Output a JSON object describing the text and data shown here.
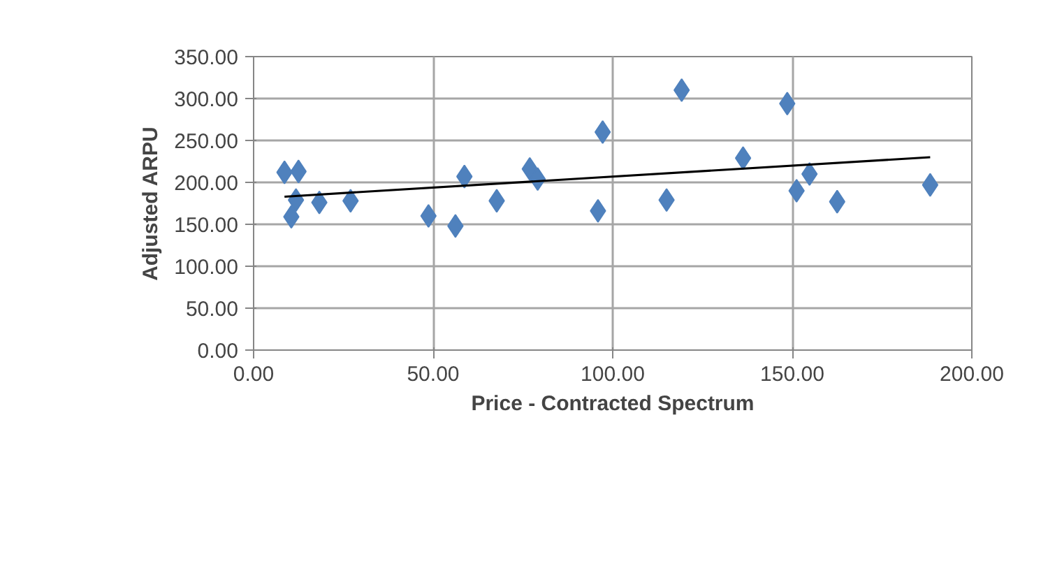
{
  "chart_data": {
    "type": "scatter",
    "xlabel": "Price - Contracted Spectrum",
    "ylabel": "Adjusted ARPU",
    "grid": true,
    "xlim": [
      0,
      200
    ],
    "xticks": [
      {
        "value": 0,
        "label": "0.00"
      },
      {
        "value": 50,
        "label": "50.00"
      },
      {
        "value": 100,
        "label": "100.00"
      },
      {
        "value": 150,
        "label": "150.00"
      },
      {
        "value": 200,
        "label": "200.00"
      }
    ],
    "ylim": [
      0,
      350
    ],
    "yticks": [
      {
        "value": 0,
        "label": "0.00"
      },
      {
        "value": 50,
        "label": "50.00"
      },
      {
        "value": 100,
        "label": "100.00"
      },
      {
        "value": 150,
        "label": "150.00"
      },
      {
        "value": 200,
        "label": "200.00"
      },
      {
        "value": 250,
        "label": "250.00"
      },
      {
        "value": 300,
        "label": "300.00"
      },
      {
        "value": 350,
        "label": "350.00"
      }
    ],
    "series": [
      {
        "marker": "diamond",
        "color": "#4f81bd",
        "x": [
          8.6,
          12.5,
          11.8,
          10.5,
          18.3,
          27,
          48.7,
          56.2,
          58.7,
          67.7,
          76.9,
          79.1,
          97.2,
          95.9,
          119.2,
          115,
          136.3,
          148.6,
          151.2,
          154.8,
          162.5,
          188.4
        ],
        "values": [
          212,
          213,
          179,
          159,
          176,
          178,
          160,
          148,
          207,
          178,
          216,
          204,
          260,
          166,
          310,
          179,
          229,
          294,
          190,
          210,
          177,
          197
        ]
      },
      {
        "type": "line",
        "color": "#000000",
        "x": [
          8.6,
          188.4
        ],
        "values": [
          183,
          230
        ]
      }
    ]
  }
}
